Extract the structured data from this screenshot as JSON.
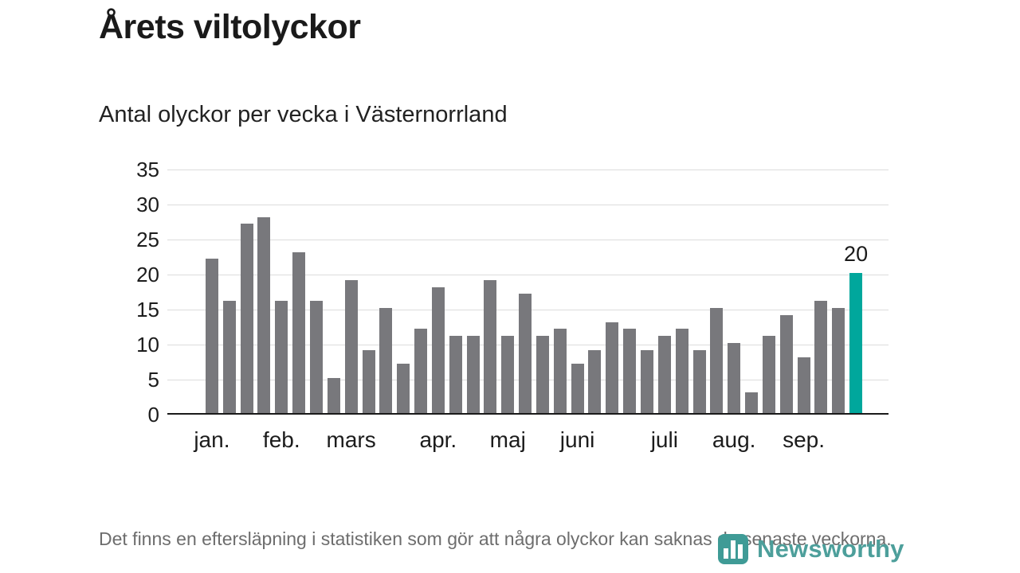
{
  "title": "Årets viltolyckor",
  "subtitle": "Antal olyckor per vecka i Västernorrland",
  "footnote": "Det finns en eftersläpning i statistiken som gör att några olyckor kan saknas de senaste veckorna.",
  "brand": {
    "name": "Newsworthy",
    "icon": "bar-chart-logo-icon",
    "color": "#4d9f9b"
  },
  "colors": {
    "bar": "#78787c",
    "highlight": "#00a79c",
    "gridline": "#dcdcdc",
    "axis": "#1a1a1a"
  },
  "chart_data": {
    "type": "bar",
    "title": "Antal olyckor per vecka i Västernorrland",
    "x_unit": "vecka",
    "values": [
      22,
      16,
      27,
      28,
      16,
      23,
      16,
      5,
      19,
      9,
      15,
      7,
      12,
      18,
      11,
      11,
      19,
      11,
      17,
      11,
      12,
      7,
      9,
      13,
      12,
      9,
      11,
      12,
      9,
      15,
      10,
      3,
      11,
      14,
      8,
      16,
      15,
      20
    ],
    "highlight_last": true,
    "last_value_label": "20",
    "month_ticks": [
      {
        "label": "jan.",
        "week_index": 0
      },
      {
        "label": "feb.",
        "week_index": 4
      },
      {
        "label": "mars",
        "week_index": 8
      },
      {
        "label": "apr.",
        "week_index": 13
      },
      {
        "label": "maj",
        "week_index": 17
      },
      {
        "label": "juni",
        "week_index": 21
      },
      {
        "label": "juli",
        "week_index": 26
      },
      {
        "label": "aug.",
        "week_index": 30
      },
      {
        "label": "sep.",
        "week_index": 34
      }
    ],
    "yticks": [
      0,
      5,
      10,
      15,
      20,
      25,
      30,
      35
    ],
    "ylim": [
      0,
      35
    ],
    "grid": true,
    "legend": "none"
  }
}
